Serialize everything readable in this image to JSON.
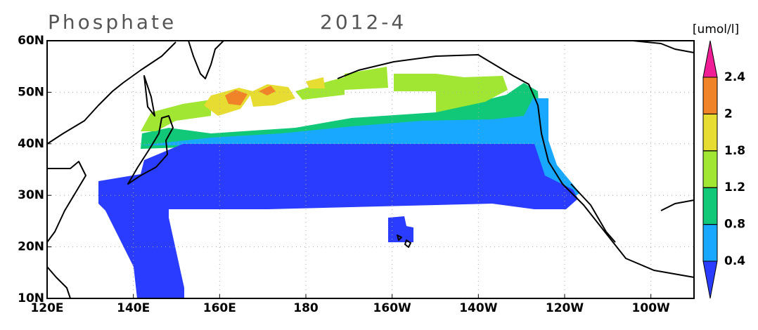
{
  "map": {
    "title": "Phosphate",
    "date": "2012-4",
    "units": "[umol/l]",
    "lat_ticks": [
      {
        "value": 60,
        "label": "60N"
      },
      {
        "value": 50,
        "label": "50N"
      },
      {
        "value": 40,
        "label": "40N"
      },
      {
        "value": 30,
        "label": "30N"
      },
      {
        "value": 20,
        "label": "20N"
      },
      {
        "value": 10,
        "label": "10N"
      }
    ],
    "lon_ticks": [
      {
        "value": 120,
        "label": "120E"
      },
      {
        "value": 140,
        "label": "140E"
      },
      {
        "value": 160,
        "label": "160E"
      },
      {
        "value": 180,
        "label": "180"
      },
      {
        "value": 200,
        "label": "160W"
      },
      {
        "value": 220,
        "label": "140W"
      },
      {
        "value": 240,
        "label": "120W"
      },
      {
        "value": 260,
        "label": "100W"
      }
    ],
    "latlim": [
      10,
      60
    ],
    "lonlim": [
      120,
      270
    ],
    "grid": true,
    "colorbar": {
      "levels": [
        0.4,
        0.8,
        1.2,
        1.8,
        2,
        2.4
      ],
      "colors": [
        "#2a3cff",
        "#19a8ff",
        "#10c878",
        "#a0e632",
        "#e6dc32",
        "#f08228",
        "#f01e96"
      ]
    }
  }
}
